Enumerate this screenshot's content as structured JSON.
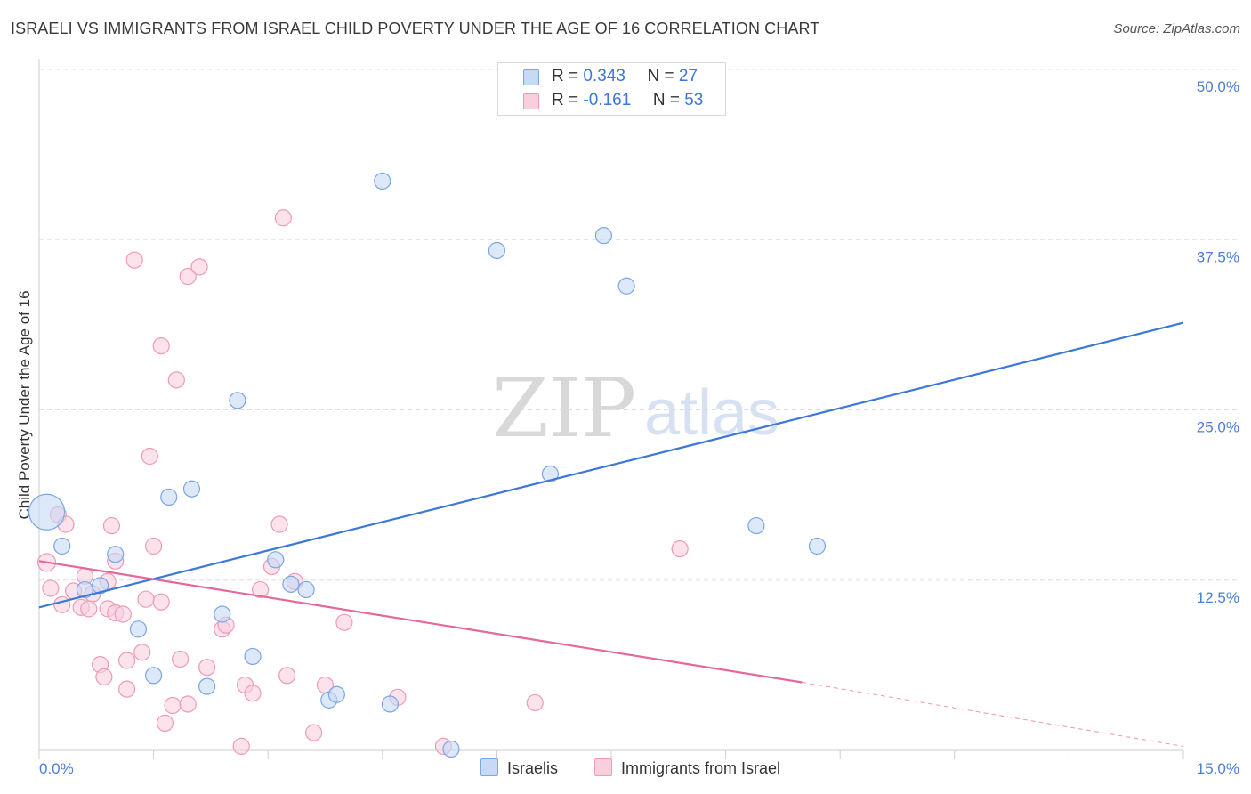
{
  "title": "ISRAELI VS IMMIGRANTS FROM ISRAEL CHILD POVERTY UNDER THE AGE OF 16 CORRELATION CHART",
  "source": "Source: ZipAtlas.com",
  "watermark": {
    "zip": "ZIP",
    "atlas": "atlas"
  },
  "colors": {
    "blue": "#3b78d8",
    "blue_fill": "#c6d9f5",
    "blue_stroke": "#7aa6e6",
    "pink": "#e4689a",
    "pink_fill": "#f9cfdd",
    "pink_stroke": "#ef9ab8",
    "grid": "#dddddd",
    "tick_label": "#4a7fd4"
  },
  "legend": {
    "r_label": "R =",
    "n_label": "N =",
    "blue": {
      "r": "0.343",
      "n": "27"
    },
    "pink": {
      "r": "-0.161",
      "n": "53"
    }
  },
  "bottom_legend": {
    "blue": "Israelis",
    "pink": "Immigrants from Israel"
  },
  "chart_data": {
    "type": "scatter",
    "title": "ISRAELI VS IMMIGRANTS FROM ISRAEL CHILD POVERTY UNDER THE AGE OF 16 CORRELATION CHART",
    "xlabel": "",
    "ylabel": "Child Poverty Under the Age of 16",
    "xlim": [
      0,
      15
    ],
    "ylim": [
      0,
      50
    ],
    "x_tick_labels": [
      "0.0%",
      "15.0%"
    ],
    "y_ticks": [
      12.5,
      25.0,
      37.5,
      50.0
    ],
    "y_tick_labels": [
      "12.5%",
      "25.0%",
      "37.5%",
      "50.0%"
    ],
    "series": [
      {
        "name": "Israelis",
        "color": "#3b78d8",
        "points": [
          [
            0.1,
            17.5,
            20
          ],
          [
            0.3,
            15.0,
            9
          ],
          [
            0.6,
            11.8,
            9
          ],
          [
            0.8,
            12.1,
            9
          ],
          [
            1.0,
            14.4,
            9
          ],
          [
            1.3,
            8.9,
            9
          ],
          [
            1.5,
            5.5,
            9
          ],
          [
            1.7,
            18.6,
            9
          ],
          [
            2.0,
            19.2,
            9
          ],
          [
            2.2,
            4.7,
            9
          ],
          [
            2.4,
            10.0,
            9
          ],
          [
            2.6,
            25.7,
            9
          ],
          [
            2.8,
            6.9,
            9
          ],
          [
            3.1,
            14.0,
            9
          ],
          [
            3.3,
            12.2,
            9
          ],
          [
            3.5,
            11.8,
            9
          ],
          [
            3.8,
            3.7,
            9
          ],
          [
            3.9,
            4.1,
            9
          ],
          [
            4.5,
            41.8,
            9
          ],
          [
            4.6,
            3.4,
            9
          ],
          [
            5.4,
            0.1,
            9
          ],
          [
            6.0,
            36.7,
            9
          ],
          [
            6.7,
            20.3,
            9
          ],
          [
            7.4,
            37.8,
            9
          ],
          [
            7.7,
            34.1,
            9
          ],
          [
            9.4,
            16.5,
            9
          ],
          [
            10.2,
            15.0,
            9
          ]
        ],
        "trend": {
          "x": [
            0,
            15
          ],
          "y": [
            10.5,
            31.4
          ]
        }
      },
      {
        "name": "Immigrants from Israel",
        "color": "#e4689a",
        "points": [
          [
            0.1,
            13.8,
            10
          ],
          [
            0.15,
            11.9,
            9
          ],
          [
            0.25,
            17.3,
            9
          ],
          [
            0.3,
            10.7,
            9
          ],
          [
            0.35,
            16.6,
            9
          ],
          [
            0.45,
            11.7,
            9
          ],
          [
            0.55,
            10.5,
            9
          ],
          [
            0.6,
            12.8,
            9
          ],
          [
            0.65,
            10.4,
            9
          ],
          [
            0.7,
            11.5,
            9
          ],
          [
            0.8,
            6.3,
            9
          ],
          [
            0.85,
            5.4,
            9
          ],
          [
            0.9,
            12.4,
            9
          ],
          [
            0.9,
            10.4,
            9
          ],
          [
            0.95,
            16.5,
            9
          ],
          [
            1.0,
            13.9,
            9
          ],
          [
            1.0,
            10.1,
            9
          ],
          [
            1.1,
            10.0,
            9
          ],
          [
            1.15,
            6.6,
            9
          ],
          [
            1.15,
            4.5,
            9
          ],
          [
            1.25,
            36.0,
            9
          ],
          [
            1.35,
            7.2,
            9
          ],
          [
            1.4,
            11.1,
            9
          ],
          [
            1.45,
            21.6,
            9
          ],
          [
            1.5,
            15.0,
            9
          ],
          [
            1.6,
            29.7,
            9
          ],
          [
            1.6,
            10.9,
            9
          ],
          [
            1.65,
            2.0,
            9
          ],
          [
            1.75,
            3.3,
            9
          ],
          [
            1.8,
            27.2,
            9
          ],
          [
            1.85,
            6.7,
            9
          ],
          [
            1.95,
            34.8,
            9
          ],
          [
            1.95,
            3.4,
            9
          ],
          [
            2.1,
            35.5,
            9
          ],
          [
            2.2,
            6.1,
            9
          ],
          [
            2.4,
            8.9,
            9
          ],
          [
            2.45,
            9.2,
            9
          ],
          [
            2.65,
            0.3,
            9
          ],
          [
            2.7,
            4.8,
            9
          ],
          [
            2.8,
            4.2,
            9
          ],
          [
            2.9,
            11.8,
            9
          ],
          [
            3.05,
            13.5,
            9
          ],
          [
            3.15,
            16.6,
            9
          ],
          [
            3.2,
            39.1,
            9
          ],
          [
            3.25,
            5.5,
            9
          ],
          [
            3.35,
            12.4,
            9
          ],
          [
            3.6,
            1.3,
            9
          ],
          [
            3.75,
            4.8,
            9
          ],
          [
            4.0,
            9.4,
            9
          ],
          [
            4.7,
            3.9,
            9
          ],
          [
            5.3,
            0.3,
            9
          ],
          [
            6.5,
            3.5,
            9
          ],
          [
            8.4,
            14.8,
            9
          ]
        ],
        "trend": {
          "x": [
            0,
            10.0
          ],
          "y": [
            13.9,
            5.0
          ]
        },
        "trend_dashed": {
          "x": [
            10.0,
            15
          ],
          "y": [
            5.0,
            0.3
          ]
        }
      }
    ]
  }
}
